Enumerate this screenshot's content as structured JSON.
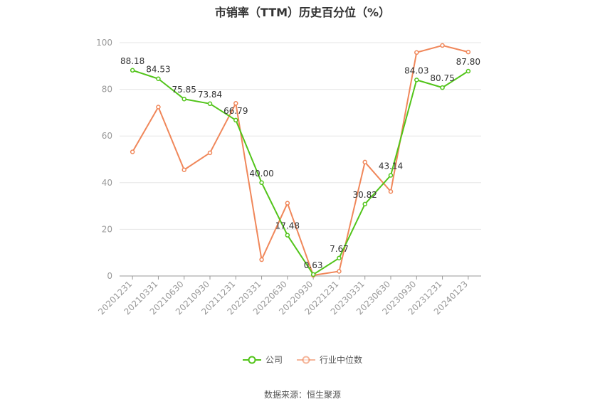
{
  "chart_data": {
    "type": "line",
    "title": "市销率（TTM）历史百分位（%）",
    "categories": [
      "20201231",
      "20210331",
      "20210630",
      "20210930",
      "20211231",
      "20220331",
      "20220630",
      "20220930",
      "20221231",
      "20230331",
      "20230630",
      "20230930",
      "20231231",
      "20240123"
    ],
    "series": [
      {
        "name": "公司",
        "color": "#52c41a",
        "values": [
          88.18,
          84.53,
          75.85,
          73.84,
          66.79,
          40.0,
          17.48,
          0.63,
          7.67,
          30.82,
          43.14,
          84.03,
          80.75,
          87.8
        ],
        "labels": [
          "88.18",
          "84.53",
          "75.85",
          "73.84",
          "66.79",
          "40.00",
          "17.48",
          "0.63",
          "7.67",
          "30.82",
          "43.14",
          "84.03",
          "80.75",
          "87.80"
        ]
      },
      {
        "name": "行业中位数",
        "color": "#f0875a",
        "values": [
          53.2,
          72.4,
          45.5,
          52.8,
          74.0,
          7.0,
          31.2,
          0.3,
          2.0,
          48.8,
          36.2,
          95.8,
          98.8,
          96.0
        ]
      }
    ],
    "ylim": [
      0,
      100
    ],
    "yticks": [
      "0",
      "20",
      "40",
      "60",
      "80",
      "100"
    ],
    "grid": true,
    "legend_position": "bottom"
  },
  "source": "数据来源：恒生聚源"
}
